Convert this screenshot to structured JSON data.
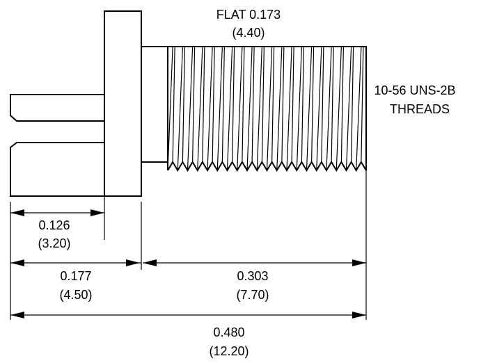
{
  "flat_note": {
    "line1": "FLAT 0.173",
    "line2": "(4.40)"
  },
  "thread_note": {
    "line1": "10-56 UNS-2B",
    "line2": "THREADS"
  },
  "dimensions": {
    "tab_length": {
      "inch": "0.126",
      "mm": "(3.20)"
    },
    "head_length": {
      "inch": "0.177",
      "mm": "(4.50)"
    },
    "thread_length": {
      "inch": "0.303",
      "mm": "(7.70)"
    },
    "overall_length": {
      "inch": "0.480",
      "mm": "(12.20)"
    }
  }
}
